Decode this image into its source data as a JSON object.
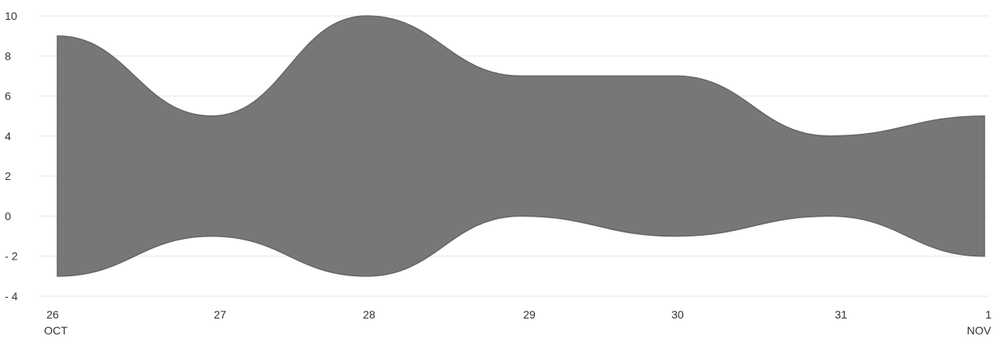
{
  "chart_data": {
    "type": "area",
    "title": "",
    "xlabel": "",
    "ylabel": "",
    "x": [
      "2023-10-26",
      "2023-10-27",
      "2023-10-28",
      "2023-10-29",
      "2023-10-30",
      "2023-10-31",
      "2023-11-01"
    ],
    "x_tick_labels": [
      {
        "day": "26",
        "month": "OCT"
      },
      {
        "day": "27",
        "month": ""
      },
      {
        "day": "28",
        "month": ""
      },
      {
        "day": "29",
        "month": ""
      },
      {
        "day": "30",
        "month": ""
      },
      {
        "day": "31",
        "month": ""
      },
      {
        "day": "1",
        "month": "NOV"
      }
    ],
    "y_ticks": [
      "10",
      "8",
      "6",
      "4",
      "2",
      "0",
      "- 2",
      "- 4"
    ],
    "ylim": [
      -4,
      10
    ],
    "grid": true,
    "series": [
      {
        "upper": [
          9,
          5,
          10,
          7,
          7,
          4,
          5
        ],
        "lower": [
          -3,
          -1,
          -3,
          0,
          -1,
          0,
          -2
        ]
      }
    ],
    "colors": {
      "fill": "#777777",
      "stroke": "#666666"
    }
  }
}
